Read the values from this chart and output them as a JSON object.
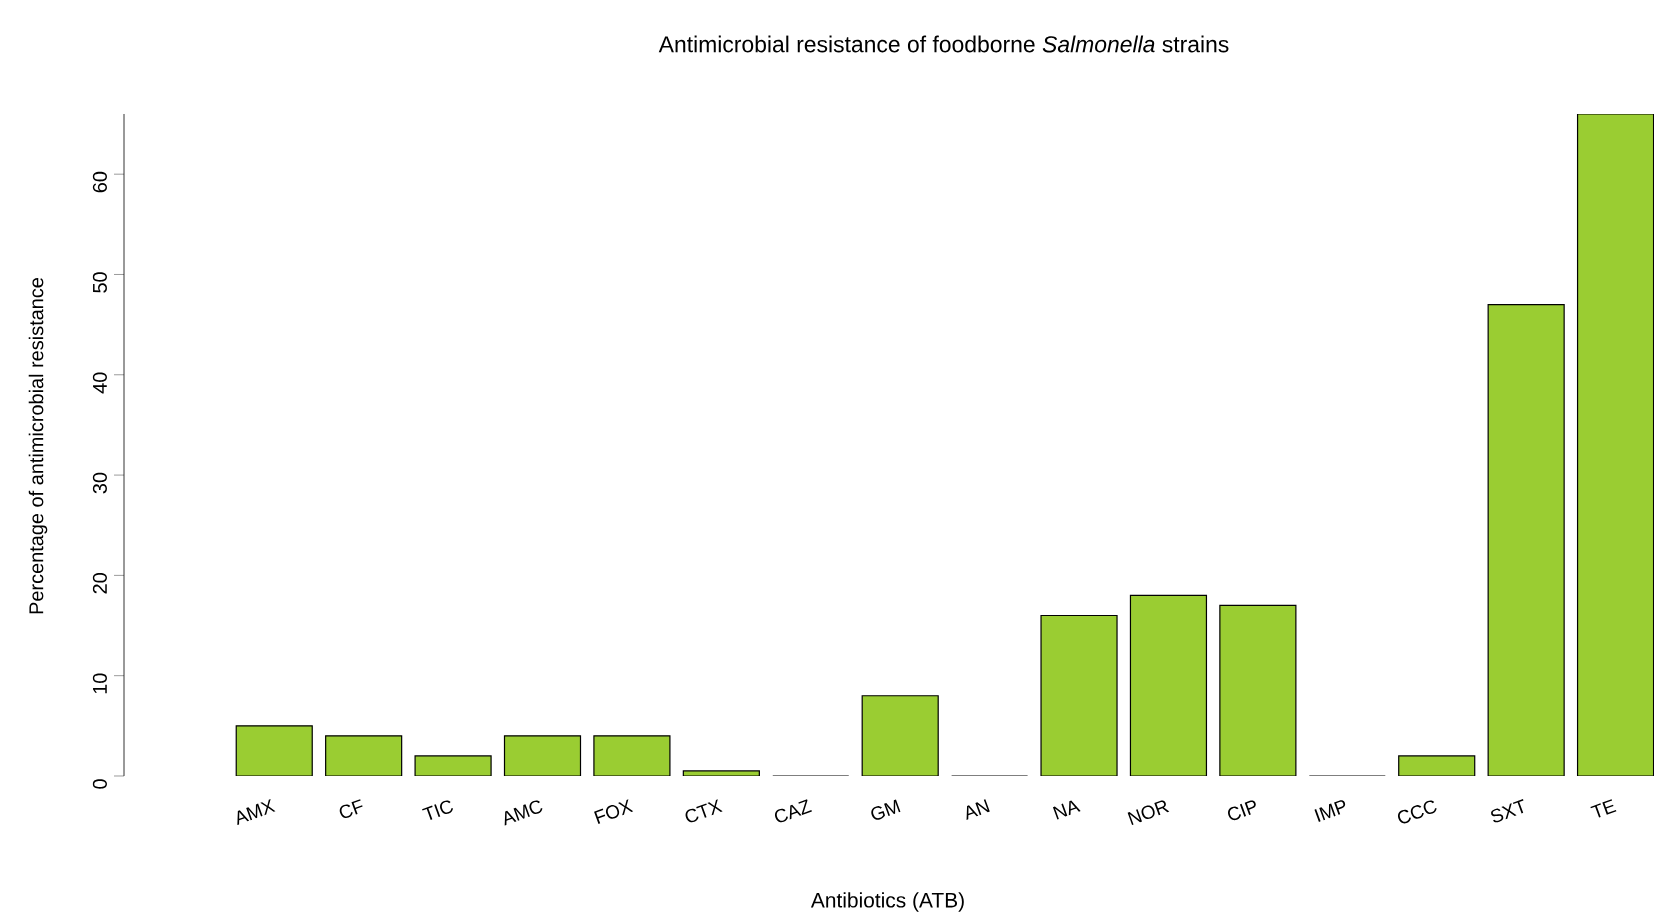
{
  "chart_data": {
    "type": "bar",
    "title": "Antimicrobial resistance of foodborne *Salmonella* strains",
    "xlabel": "Antibiotics (ATB)",
    "ylabel": "Percentage of antimicrobial resistance",
    "categories": [
      "AMX",
      "CF",
      "TIC",
      "AMC",
      "FOX",
      "CTX",
      "CAZ",
      "GM",
      "AN",
      "NA",
      "NOR",
      "CIP",
      "IMP",
      "CCC",
      "SXT",
      "TE"
    ],
    "values": [
      5,
      4,
      2,
      4,
      4,
      0.5,
      0,
      8,
      0,
      16,
      18,
      17,
      0,
      2,
      47,
      66
    ],
    "color": "#9acd32",
    "ylim": [
      0,
      66
    ],
    "yticks": [
      0,
      10,
      20,
      30,
      40,
      50,
      60
    ]
  }
}
